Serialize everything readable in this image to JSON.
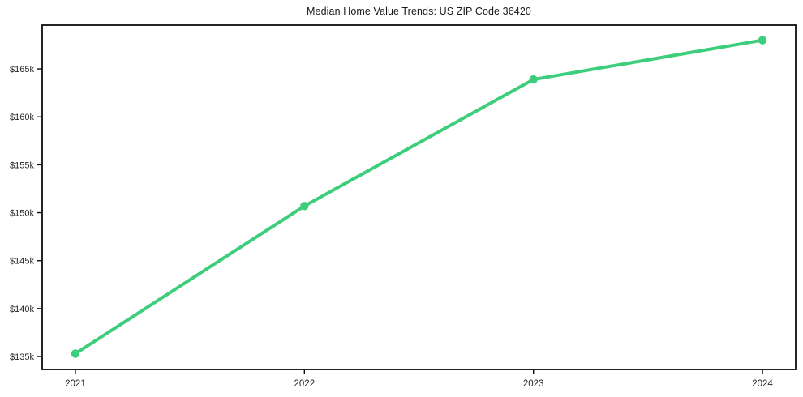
{
  "chart_data": {
    "type": "line",
    "title": "Median Home Value Trends: US ZIP Code 36420",
    "series": [
      {
        "name": "Median Home Value",
        "values": [
          135300,
          150700,
          163900,
          168000
        ]
      }
    ],
    "x": [
      2021,
      2022,
      2023,
      2024
    ],
    "x_tick_labels": [
      "2021",
      "2022",
      "2023",
      "2024"
    ],
    "y_ticks": [
      135000,
      140000,
      145000,
      150000,
      155000,
      160000,
      165000
    ],
    "y_tick_labels": [
      "$135k",
      "$140k",
      "$145k",
      "$150k",
      "$155k",
      "$160k",
      "$165k"
    ],
    "xlim": [
      2020.855,
      2024.145
    ],
    "ylim": [
      133650,
      169570
    ],
    "xlabel": "",
    "ylabel": "",
    "grid": false,
    "legend": "none",
    "marker": "circle",
    "line_color": "#3dce7c",
    "axis_color": "#0d0d0d",
    "tick_label_color": "#262626",
    "background_color": "#ffffff"
  }
}
